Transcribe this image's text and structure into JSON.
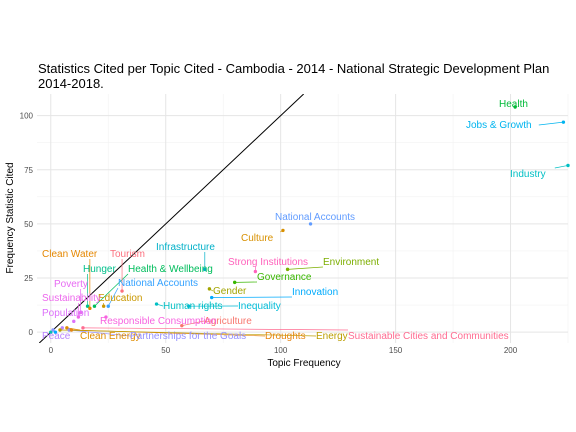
{
  "chart_data": {
    "type": "scatter",
    "title_line1": "Statistics Cited per Topic Cited - Cambodia - 2014 - National Strategic Development Plan",
    "title_line2": "2014-2018.",
    "xlabel": "Topic Frequency",
    "ylabel": "Frequency Statistic Cited",
    "xlim": [
      -6,
      225
    ],
    "ylim": [
      -5,
      110
    ],
    "x_ticks": [
      0,
      50,
      100,
      150,
      200
    ],
    "y_ticks": [
      0,
      25,
      50,
      75,
      100
    ],
    "grid": true,
    "reference_line": "y = x",
    "points": [
      {
        "label": "Health",
        "x": 202,
        "y": 104,
        "color": "#00BA38"
      },
      {
        "label": "Jobs & Growth",
        "x": 223,
        "y": 97,
        "color": "#00B4EF"
      },
      {
        "label": "Industry",
        "x": 225,
        "y": 77,
        "color": "#00BFC4"
      },
      {
        "label": "National Accounts",
        "x": 113,
        "y": 50,
        "color": "#619CFF"
      },
      {
        "label": "Culture",
        "x": 101,
        "y": 47,
        "color": "#D89000"
      },
      {
        "label": "Infrastructure",
        "x": 67,
        "y": 29,
        "color": "#00B0C8"
      },
      {
        "label": "Environment",
        "x": 103,
        "y": 29,
        "color": "#7CAE00"
      },
      {
        "label": "Strong Institutions",
        "x": 89,
        "y": 28,
        "color": "#FF62BC"
      },
      {
        "label": "Governance",
        "x": 80,
        "y": 23,
        "color": "#39B600"
      },
      {
        "label": "Innovation",
        "x": 70,
        "y": 16,
        "color": "#00ABFD"
      },
      {
        "label": "Gender",
        "x": 69,
        "y": 20,
        "color": "#A3A500"
      },
      {
        "label": "Inequality",
        "x": 60,
        "y": 12,
        "color": "#00BCD8"
      },
      {
        "label": "Human rights",
        "x": 46,
        "y": 13,
        "color": "#00BFC4"
      },
      {
        "label": "Agriculture",
        "x": 57,
        "y": 3,
        "color": "#F8766D"
      },
      {
        "label": "Responsible Consumption",
        "x": 24,
        "y": 7,
        "color": "#F763E0"
      },
      {
        "label": "National Accounts",
        "x": 25,
        "y": 12,
        "color": "#35A2FF"
      },
      {
        "label": "Education",
        "x": 23,
        "y": 12,
        "color": "#C99800"
      },
      {
        "label": "Hunger",
        "x": 16,
        "y": 12,
        "color": "#00C08B"
      },
      {
        "label": "Health & Wellbeing",
        "x": 19,
        "y": 12,
        "color": "#00BD5C"
      },
      {
        "label": "Tourism",
        "x": 31,
        "y": 19,
        "color": "#FC717F"
      },
      {
        "label": "Clean Water",
        "x": 17,
        "y": 11,
        "color": "#E58700"
      },
      {
        "label": "Poverty",
        "x": 13,
        "y": 9,
        "color": "#E76BF3"
      },
      {
        "label": "Sustainability",
        "x": 12,
        "y": 7,
        "color": "#ED68ED"
      },
      {
        "label": "Population",
        "x": 10,
        "y": 5,
        "color": "#DC71FA"
      },
      {
        "label": "Peace",
        "x": 5,
        "y": 2,
        "color": "#B983FF"
      },
      {
        "label": "Clean Energy",
        "x": 7,
        "y": 2,
        "color": "#DE8C00"
      },
      {
        "label": "Partnerships for the Goals",
        "x": 8,
        "y": 1,
        "color": "#9590FF"
      },
      {
        "label": "Droughts",
        "x": 9,
        "y": 1,
        "color": "#E68613"
      },
      {
        "label": "Energy",
        "x": 4,
        "y": 1,
        "color": "#BB9D00"
      },
      {
        "label": "Sustainable Cities and Communities",
        "x": 14,
        "y": 2,
        "color": "#FF6C91"
      },
      {
        "label": "",
        "x": 0,
        "y": 0,
        "color": "#00C0AF"
      },
      {
        "label": "",
        "x": 1,
        "y": 1,
        "color": "#8494FF"
      },
      {
        "label": "",
        "x": 2,
        "y": 0,
        "color": "#00A9FF"
      }
    ]
  }
}
